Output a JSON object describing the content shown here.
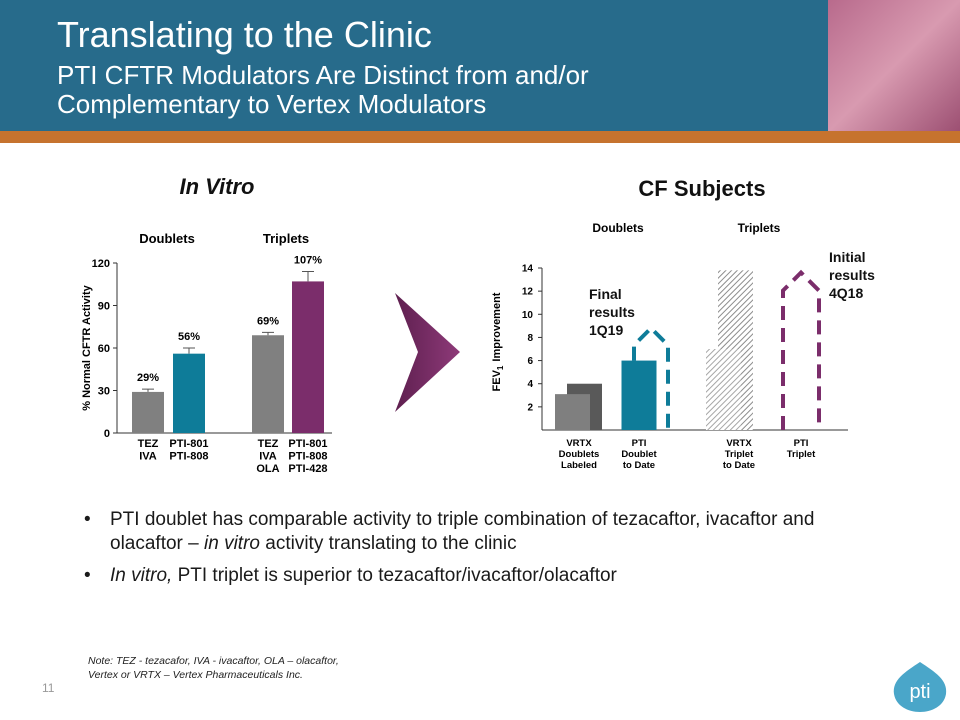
{
  "header": {
    "title": "Translating to the Clinic",
    "subtitle": [
      "PTI CFTR Modulators Are Distinct from and/or",
      "Complementary to Vertex Modulators"
    ]
  },
  "chart_data": [
    {
      "type": "bar",
      "title": "In Vitro",
      "groups": [
        "Doublets",
        "Triplets"
      ],
      "y_label": "% Normal CFTR Activity",
      "categories": [
        [
          "TEZ",
          "IVA"
        ],
        [
          "PTI-801",
          "PTI-808"
        ],
        [
          "TEZ",
          "IVA",
          "OLA"
        ],
        [
          "PTI-801",
          "PTI-808",
          "PTI-428"
        ]
      ],
      "values": [
        29,
        56,
        69,
        107
      ],
      "errors": [
        2,
        4,
        2,
        7
      ],
      "value_labels": [
        "29%",
        "56%",
        "69%",
        "107%"
      ],
      "colors": [
        "#808080",
        "#0e7c99",
        "#808080",
        "#7b2d6b"
      ],
      "ylim": [
        0,
        120
      ],
      "yticks": [
        0,
        30,
        60,
        90,
        120
      ]
    },
    {
      "type": "bar",
      "title": "CF Subjects",
      "groups": [
        "Doublets",
        "Triplets"
      ],
      "y_label": {
        "text": "FEV",
        "subscript": "1",
        "rest": "Improvement"
      },
      "categories": [
        [
          "VRTX",
          "Doublets",
          "Labeled"
        ],
        [
          "PTI",
          "Doublet",
          "to Date"
        ],
        [
          "VRTX",
          "Triplet",
          "to Date"
        ],
        [
          "PTI",
          "Triplet"
        ]
      ],
      "series": [
        {
          "values": [
            3.1,
            6,
            7,
            null
          ],
          "colors": [
            "#7f7f7f",
            "#0e7c99",
            "#a6a6a6",
            null
          ],
          "hatched": [
            false,
            false,
            true,
            null
          ]
        },
        {
          "values": [
            4,
            null,
            13.8,
            null
          ],
          "colors": [
            "#595959",
            null,
            "#8c8c8c",
            null
          ],
          "hatched": [
            false,
            null,
            true,
            null
          ]
        }
      ],
      "annotations": [
        {
          "text": [
            "Final",
            "results",
            "1Q19"
          ],
          "category": 1,
          "value": 8.8,
          "color": "#0e7c99"
        },
        {
          "text": [
            "Initial",
            "results",
            "4Q18"
          ],
          "category": 3,
          "value": 13.6,
          "color": "#7b2d6b"
        }
      ],
      "ylim": [
        0,
        14
      ],
      "yticks": [
        2,
        4,
        6,
        8,
        10,
        12,
        14
      ]
    }
  ],
  "bullets": [
    [
      {
        "text": "PTI doublet has comparable activity to triple combination of tezacaftor, ivacaftor and olacaftor – ",
        "italic": false
      },
      {
        "text": "in vitro",
        "italic": true
      },
      {
        "text": " activity translating to the clinic",
        "italic": false
      }
    ],
    [
      {
        "text": "In vitro,",
        "italic": true
      },
      {
        "text": " PTI triplet is superior to tezacaftor/ivacaftor/olacaftor",
        "italic": false
      }
    ]
  ],
  "note": [
    "Note: TEZ - tezacafor, IVA - ivacaftor, OLA – olacaftor,",
    "Vertex or VRTX – Vertex Pharmaceuticals Inc."
  ],
  "page_number": 11,
  "logo": "pti"
}
